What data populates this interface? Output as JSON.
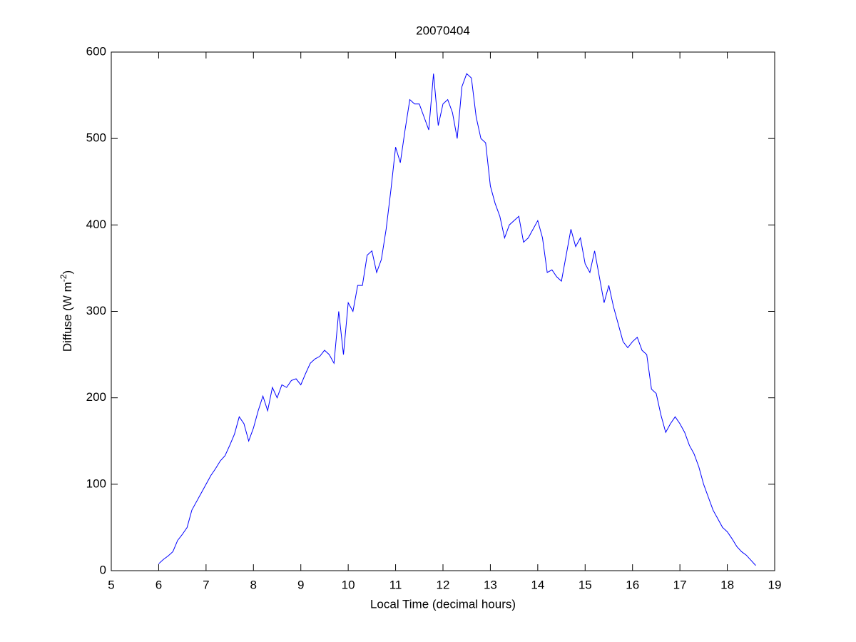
{
  "chart_data": {
    "type": "line",
    "title": "20070404",
    "xlabel": "Local Time (decimal hours)",
    "ylabel": [
      "Diffuse (W m",
      "-2",
      ")"
    ],
    "x": [
      6.0,
      6.1,
      6.2,
      6.3,
      6.4,
      6.5,
      6.6,
      6.7,
      6.8,
      6.9,
      7.0,
      7.1,
      7.2,
      7.3,
      7.4,
      7.5,
      7.6,
      7.7,
      7.8,
      7.9,
      8.0,
      8.1,
      8.2,
      8.3,
      8.4,
      8.5,
      8.6,
      8.7,
      8.8,
      8.9,
      9.0,
      9.1,
      9.2,
      9.3,
      9.4,
      9.5,
      9.6,
      9.7,
      9.8,
      9.9,
      10.0,
      10.1,
      10.2,
      10.3,
      10.4,
      10.5,
      10.6,
      10.7,
      10.8,
      10.9,
      11.0,
      11.1,
      11.2,
      11.3,
      11.4,
      11.5,
      11.6,
      11.7,
      11.8,
      11.9,
      12.0,
      12.1,
      12.2,
      12.3,
      12.4,
      12.5,
      12.6,
      12.7,
      12.8,
      12.9,
      13.0,
      13.1,
      13.2,
      13.3,
      13.4,
      13.5,
      13.6,
      13.7,
      13.8,
      13.9,
      14.0,
      14.1,
      14.2,
      14.3,
      14.4,
      14.5,
      14.6,
      14.7,
      14.8,
      14.9,
      15.0,
      15.1,
      15.2,
      15.3,
      15.4,
      15.5,
      15.6,
      15.7,
      15.8,
      15.9,
      16.0,
      16.1,
      16.2,
      16.3,
      16.4,
      16.5,
      16.6,
      16.7,
      16.8,
      16.9,
      17.0,
      17.1,
      17.2,
      17.3,
      17.4,
      17.5,
      17.6,
      17.7,
      17.8,
      17.9,
      18.0,
      18.1,
      18.2,
      18.3,
      18.4,
      18.5,
      18.6
    ],
    "series": [
      {
        "name": "Diffuse",
        "color": "#0000ff",
        "values": [
          8,
          13,
          17,
          22,
          35,
          42,
          50,
          70,
          80,
          90,
          100,
          110,
          118,
          127,
          133,
          145,
          158,
          178,
          170,
          150,
          165,
          185,
          202,
          185,
          212,
          200,
          215,
          212,
          220,
          222,
          215,
          228,
          240,
          245,
          248,
          255,
          250,
          240,
          300,
          250,
          310,
          300,
          330,
          330,
          365,
          370,
          345,
          360,
          395,
          440,
          490,
          472,
          510,
          545,
          540,
          540,
          525,
          510,
          575,
          515,
          540,
          545,
          530,
          500,
          560,
          575,
          570,
          525,
          500,
          495,
          445,
          425,
          410,
          385,
          400,
          405,
          410,
          380,
          385,
          395,
          405,
          385,
          345,
          348,
          340,
          335,
          365,
          395,
          375,
          385,
          355,
          345,
          370,
          340,
          310,
          330,
          305,
          285,
          265,
          258,
          265,
          270,
          255,
          250,
          210,
          205,
          180,
          160,
          170,
          178,
          170,
          160,
          145,
          135,
          120,
          100,
          85,
          70,
          60,
          50,
          45,
          37,
          28,
          22,
          18,
          12,
          6
        ]
      }
    ],
    "xlim": [
      5,
      19
    ],
    "xticks": [
      5,
      6,
      7,
      8,
      9,
      10,
      11,
      12,
      13,
      14,
      15,
      16,
      17,
      18,
      19
    ],
    "ylim": [
      0,
      600
    ],
    "yticks": [
      0,
      100,
      200,
      300,
      400,
      500,
      600
    ],
    "grid": false
  }
}
